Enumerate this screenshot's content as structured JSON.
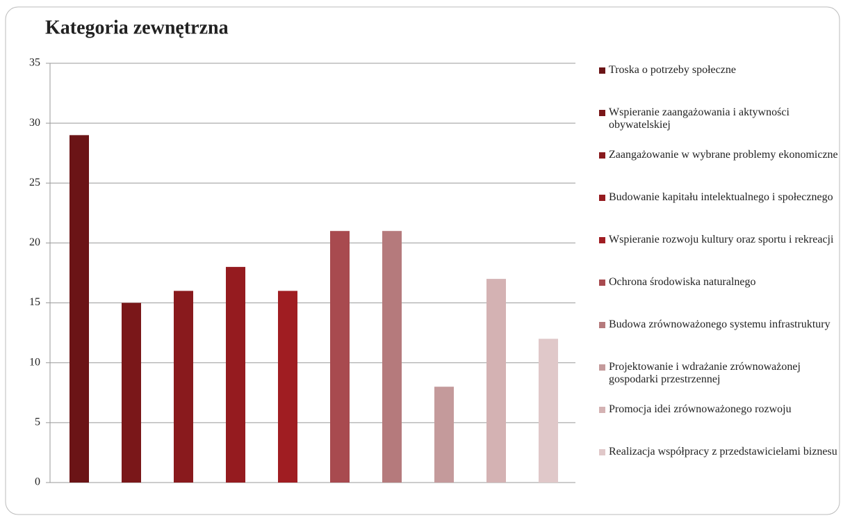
{
  "chart_data": {
    "type": "bar",
    "title": "Kategoria zewnętrzna",
    "categories": [
      null
    ],
    "series": [
      {
        "name": "Troska o potrzeby społeczne",
        "color": "#6b1416",
        "values": [
          29
        ]
      },
      {
        "name": "Wspieranie zaangażowania i aktywności obywatelskiej",
        "color": "#7a1719",
        "values": [
          15
        ]
      },
      {
        "name": "Zaangażowanie w wybrane problemy ekonomiczne",
        "color": "#891a1d",
        "values": [
          16
        ]
      },
      {
        "name": "Budowanie kapitału intelektualnego i społecznego",
        "color": "#951b1f",
        "values": [
          18
        ]
      },
      {
        "name": "Wspieranie rozwoju kultury oraz sportu i rekreacji",
        "color": "#a01d22",
        "values": [
          16
        ]
      },
      {
        "name": "Ochrona środowiska naturalnego",
        "color": "#a84a4f",
        "values": [
          21
        ]
      },
      {
        "name": "Budowa zrównoważonego systemu infrastruktury",
        "color": "#b57a7c",
        "values": [
          21
        ]
      },
      {
        "name": "Projektowanie i wdrażanie zrównoważonej gospodarki przestrzennej",
        "color": "#c49a9b",
        "values": [
          8
        ]
      },
      {
        "name": "Promocja idei zrównoważonego rozwoju",
        "color": "#d4b2b3",
        "values": [
          17
        ]
      },
      {
        "name": "Realizacja współpracy z przedstawicielami biznesu",
        "color": "#e0c8c9",
        "values": [
          12
        ]
      }
    ],
    "ylim": [
      0,
      35
    ],
    "yticks": [
      0,
      5,
      10,
      15,
      20,
      25,
      30,
      35
    ],
    "grid": true,
    "legend": "right"
  }
}
